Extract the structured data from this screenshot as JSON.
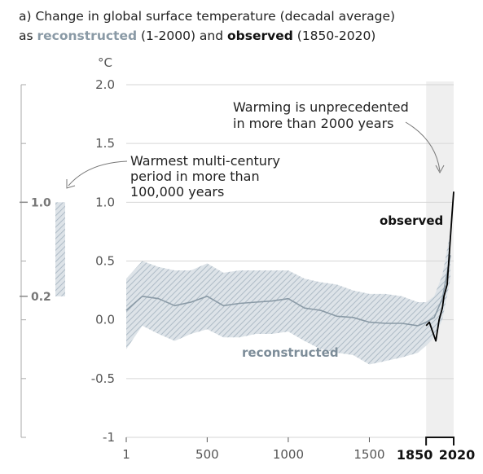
{
  "title": {
    "prefix": "a) Change in global surface temperature (decadal average)",
    "line2_a": "as ",
    "line2_recon": "reconstructed",
    "line2_b": " (1-2000) and ",
    "line2_obs": "observed",
    "line2_c": " (1850-2020)"
  },
  "chart_data": {
    "type": "line",
    "ylabel": "°C",
    "xlim": [
      1,
      2020
    ],
    "ylim": [
      -1,
      2
    ],
    "y_ticks": [
      "2.0",
      "1.5",
      "1.0",
      "0.5",
      "0.0",
      "-0.5",
      "-1"
    ],
    "y_tick_values": [
      2.0,
      1.5,
      1.0,
      0.5,
      0.0,
      -0.5,
      -1
    ],
    "x_ticks": [
      "1",
      "500",
      "1000",
      "1500"
    ],
    "x_tick_values": [
      1,
      500,
      1000,
      1500
    ],
    "x_ticks_bold": [
      "1850",
      "2020"
    ],
    "x_ticks_bold_values": [
      1850,
      2020
    ],
    "grid": true,
    "series": [
      {
        "name": "reconstructed",
        "color": "#8a9aa6",
        "x": [
          1,
          100,
          200,
          300,
          400,
          500,
          600,
          700,
          800,
          900,
          1000,
          1100,
          1200,
          1300,
          1400,
          1500,
          1600,
          1700,
          1800,
          1850,
          1900,
          1950,
          2000
        ],
        "y": [
          0.08,
          0.2,
          0.18,
          0.12,
          0.15,
          0.2,
          0.12,
          0.14,
          0.15,
          0.16,
          0.18,
          0.1,
          0.08,
          0.03,
          0.02,
          -0.02,
          -0.03,
          -0.03,
          -0.05,
          -0.02,
          0.02,
          0.18,
          0.55
        ],
        "band_low": [
          -0.25,
          -0.05,
          -0.12,
          -0.18,
          -0.12,
          -0.08,
          -0.15,
          -0.15,
          -0.12,
          -0.12,
          -0.1,
          -0.18,
          -0.25,
          -0.28,
          -0.3,
          -0.38,
          -0.35,
          -0.32,
          -0.28,
          -0.22,
          -0.15,
          0.0,
          0.35
        ],
        "band_high": [
          0.35,
          0.5,
          0.45,
          0.42,
          0.42,
          0.48,
          0.4,
          0.42,
          0.42,
          0.42,
          0.42,
          0.35,
          0.32,
          0.3,
          0.25,
          0.22,
          0.22,
          0.2,
          0.15,
          0.15,
          0.2,
          0.38,
          0.75
        ]
      },
      {
        "name": "observed",
        "color": "#000000",
        "x": [
          1850,
          1870,
          1890,
          1910,
          1930,
          1950,
          1960,
          1970,
          1980,
          1990,
          2000,
          2010,
          2020
        ],
        "y": [
          -0.05,
          -0.02,
          -0.1,
          -0.18,
          0.0,
          0.1,
          0.2,
          0.25,
          0.3,
          0.5,
          0.7,
          0.9,
          1.09
        ]
      }
    ],
    "annotations": [
      {
        "text": [
          "Warming is unprecedented",
          "in more than 2000 years"
        ]
      },
      {
        "text": [
          "Warmest multi-century",
          "period in more than",
          "100,000 years"
        ]
      }
    ],
    "side_bar": {
      "top_label": "1.0",
      "bottom_label": "0.2",
      "top": 1.0,
      "bottom": 0.2
    }
  }
}
